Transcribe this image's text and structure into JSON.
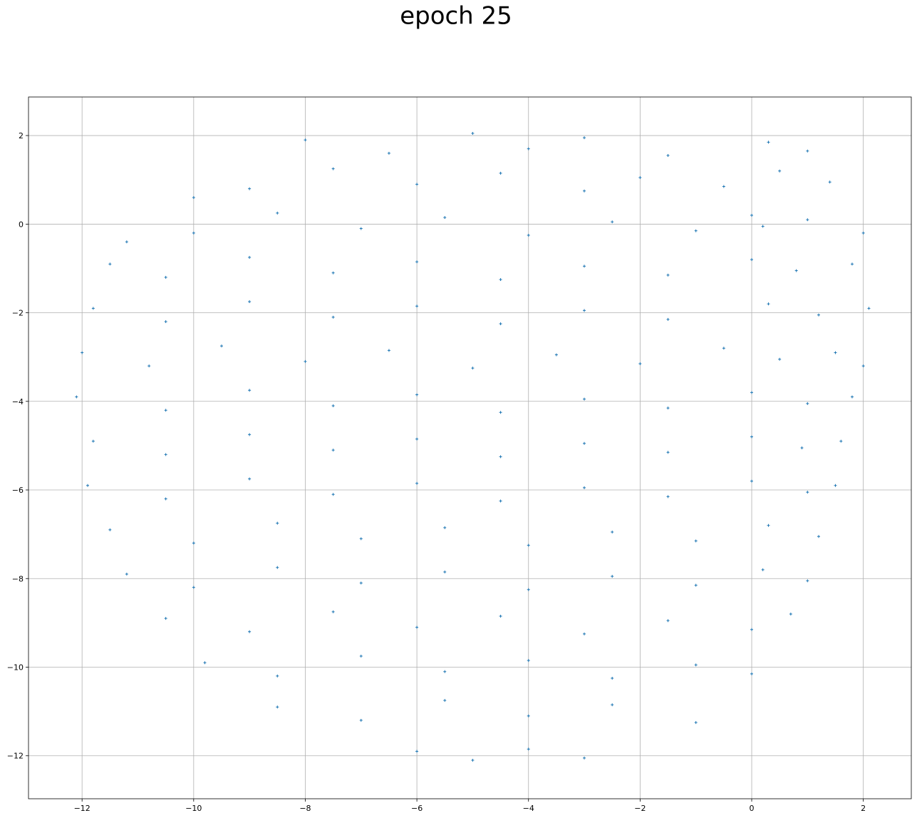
{
  "chart_data": {
    "type": "scatter",
    "title": "epoch 25",
    "color": "#1f77b4",
    "grid": true,
    "xlim": [
      -12.96,
      2.86
    ],
    "ylim": [
      -12.97,
      2.87
    ],
    "xticks": [
      {
        "value": -12,
        "label": "−12"
      },
      {
        "value": -10,
        "label": "−10"
      },
      {
        "value": -8,
        "label": "−8"
      },
      {
        "value": -6,
        "label": "−6"
      },
      {
        "value": -4,
        "label": "−4"
      },
      {
        "value": -2,
        "label": "−2"
      },
      0,
      2
    ],
    "yticks": [
      {
        "value": -12,
        "label": "−12"
      },
      {
        "value": -10,
        "label": "−10"
      },
      {
        "value": -8,
        "label": "−8"
      },
      {
        "value": -6,
        "label": "−6"
      },
      {
        "value": -4,
        "label": "−4"
      },
      {
        "value": -2,
        "label": "−2"
      },
      0,
      2
    ],
    "x": [
      -8,
      -6.5,
      -5,
      -4,
      -3,
      -1.5,
      0.3,
      1,
      -10,
      -9,
      -7.5,
      -6,
      -4.5,
      -3,
      -2,
      -0.5,
      0.5,
      1.4,
      -11.2,
      -10,
      -8.5,
      -7,
      -5.5,
      -4,
      -2.5,
      -1,
      0,
      0.2,
      1,
      2,
      -11.5,
      -10.5,
      -9,
      -7.5,
      -6,
      -4.5,
      -3,
      -1.5,
      0,
      0.8,
      1.8,
      -11.8,
      -10.5,
      -9,
      -7.5,
      -6,
      -4.5,
      -3,
      -1.5,
      0.3,
      1.2,
      2.1,
      -12,
      -10.8,
      -9.5,
      -8,
      -6.5,
      -5,
      -3.5,
      -2,
      -0.5,
      0.5,
      1.5,
      2,
      -12.1,
      -10.5,
      -9,
      -7.5,
      -6,
      -4.5,
      -3,
      -1.5,
      0,
      1,
      1.8,
      -11.8,
      -10.5,
      -9,
      -7.5,
      -6,
      -4.5,
      -3,
      -1.5,
      0,
      0.9,
      1.6,
      -11.9,
      -10.5,
      -9,
      -7.5,
      -6,
      -4.5,
      -3,
      -1.5,
      0,
      1,
      1.5,
      -11.5,
      -10,
      -8.5,
      -7,
      -5.5,
      -4,
      -2.5,
      -1,
      0.3,
      1.2,
      -11.2,
      -10,
      -8.5,
      -7,
      -5.5,
      -4,
      -2.5,
      -1,
      0.2,
      1,
      -10.5,
      -9,
      -7.5,
      -6,
      -4.5,
      -3,
      -1.5,
      0,
      0.7,
      -9.8,
      -8.5,
      -7,
      -5.5,
      -4,
      -2.5,
      -1,
      0,
      -8.5,
      -7,
      -5.5,
      -4,
      -2.5,
      -1,
      -6,
      -5,
      -4,
      -3
    ],
    "values": [
      1.9,
      1.6,
      2.05,
      1.7,
      1.95,
      1.55,
      1.85,
      1.65,
      0.6,
      0.8,
      1.25,
      0.9,
      1.15,
      0.75,
      1.05,
      0.85,
      1.2,
      0.95,
      -0.4,
      -0.2,
      0.25,
      -0.1,
      0.15,
      -0.25,
      0.05,
      -0.15,
      0.2,
      -0.05,
      0.1,
      -0.2,
      -0.9,
      -1.2,
      -0.75,
      -1.1,
      -0.85,
      -1.25,
      -0.95,
      -1.15,
      -0.8,
      -1.05,
      -0.9,
      -1.9,
      -2.2,
      -1.75,
      -2.1,
      -1.85,
      -2.25,
      -1.95,
      -2.15,
      -1.8,
      -2.05,
      -1.9,
      -2.9,
      -3.2,
      -2.75,
      -3.1,
      -2.85,
      -3.25,
      -2.95,
      -3.15,
      -2.8,
      -3.05,
      -2.9,
      -3.2,
      -3.9,
      -4.2,
      -3.75,
      -4.1,
      -3.85,
      -4.25,
      -3.95,
      -4.15,
      -3.8,
      -4.05,
      -3.9,
      -4.9,
      -5.2,
      -4.75,
      -5.1,
      -4.85,
      -5.25,
      -4.95,
      -5.15,
      -4.8,
      -5.05,
      -4.9,
      -5.9,
      -6.2,
      -5.75,
      -6.1,
      -5.85,
      -6.25,
      -5.95,
      -6.15,
      -5.8,
      -6.05,
      -5.9,
      -6.9,
      -7.2,
      -6.75,
      -7.1,
      -6.85,
      -7.25,
      -6.95,
      -7.15,
      -6.8,
      -7.05,
      -7.9,
      -8.2,
      -7.75,
      -8.1,
      -7.85,
      -8.25,
      -7.95,
      -8.15,
      -7.8,
      -8.05,
      -8.9,
      -9.2,
      -8.75,
      -9.1,
      -8.85,
      -9.25,
      -8.95,
      -9.15,
      -8.8,
      -9.9,
      -10.2,
      -9.75,
      -10.1,
      -9.85,
      -10.25,
      -9.95,
      -10.15,
      -10.9,
      -11.2,
      -10.75,
      -11.1,
      -10.85,
      -11.25,
      -11.9,
      -12.1,
      -11.85,
      -12.05
    ]
  }
}
